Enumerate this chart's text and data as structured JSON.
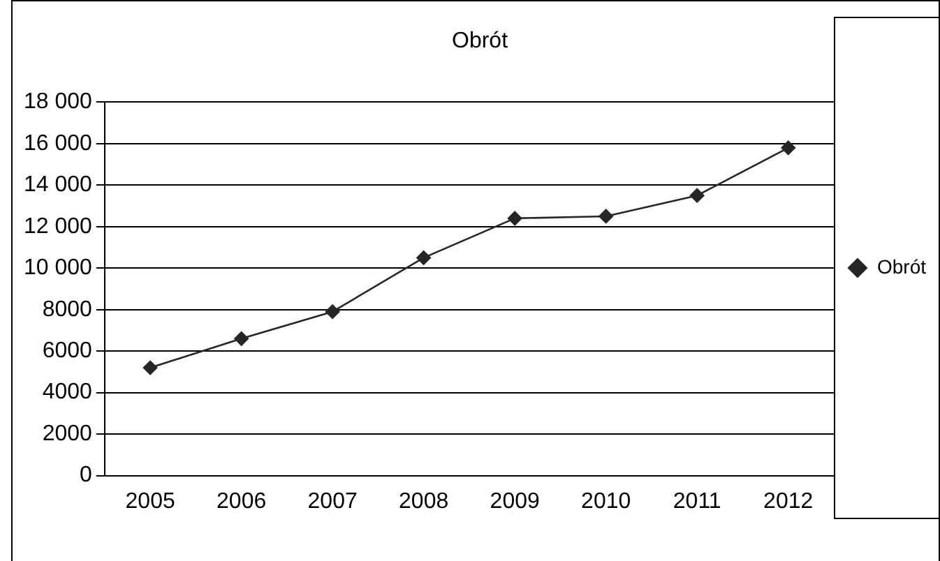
{
  "chart_data": {
    "type": "line",
    "title": "Obrót",
    "categories": [
      "2005",
      "2006",
      "2007",
      "2008",
      "2009",
      "2010",
      "2011",
      "2012"
    ],
    "series": [
      {
        "name": "Obrót",
        "color": "#262626",
        "values": [
          5200,
          6600,
          7900,
          10500,
          12400,
          12500,
          13500,
          15800
        ]
      }
    ],
    "ylim": [
      0,
      18000
    ],
    "yticks": [
      0,
      2000,
      4000,
      6000,
      8000,
      {
        "value": 10000,
        "label": "10 000"
      },
      {
        "value": 12000,
        "label": "12 000"
      },
      {
        "value": 14000,
        "label": "14 000"
      },
      {
        "value": 16000,
        "label": "16 000"
      },
      {
        "value": 18000,
        "label": "18 000"
      }
    ],
    "grid": "y",
    "legend": "right",
    "marker": "diamond",
    "line_style": "solid"
  }
}
